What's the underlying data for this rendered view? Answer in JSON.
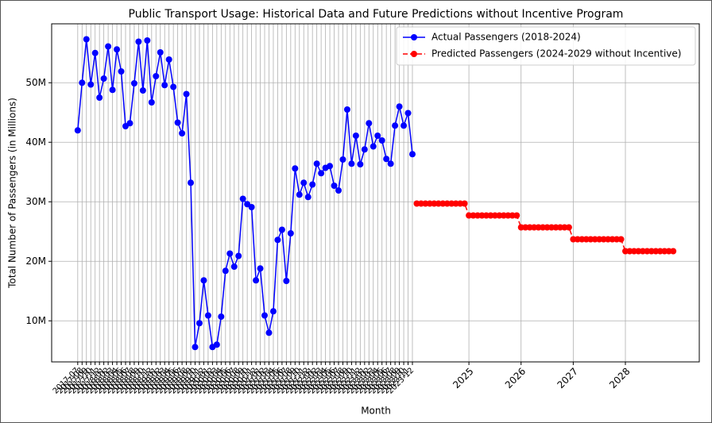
{
  "chart_data": {
    "type": "line",
    "title": "Public Transport Usage: Historical Data and Future Predictions without Incentive Program",
    "xlabel": "Month",
    "ylabel": "Total Number of Passengers (in Millions)",
    "xlim": [
      "2017-01",
      "2029-06"
    ],
    "ylim": [
      3.1,
      59.9
    ],
    "yticks": [
      {
        "value": 10,
        "label": "10M"
      },
      {
        "value": 20,
        "label": "20M"
      },
      {
        "value": 30,
        "label": "30M"
      },
      {
        "value": 40,
        "label": "40M"
      },
      {
        "value": 50,
        "label": "50M"
      }
    ],
    "xticks": [
      {
        "value": "2025-01",
        "label": "2025"
      },
      {
        "value": "2026-01",
        "label": "2026"
      },
      {
        "value": "2027-01",
        "label": "2027"
      },
      {
        "value": "2028-01",
        "label": "2028"
      }
    ],
    "grid": true,
    "legend": "upper right",
    "series": [
      {
        "name": "Actual Passengers (2018-2024)",
        "color": "blue",
        "linestyle": "solid",
        "x": [
          "2017-07",
          "2017-08",
          "2017-09",
          "2017-10",
          "2017-11",
          "2017-12",
          "2018-01",
          "2018-02",
          "2018-03",
          "2018-04",
          "2018-05",
          "2018-06",
          "2018-07",
          "2018-08",
          "2018-09",
          "2018-10",
          "2018-11",
          "2018-12",
          "2019-01",
          "2019-02",
          "2019-03",
          "2019-04",
          "2019-05",
          "2019-06",
          "2019-07",
          "2019-08",
          "2019-09",
          "2019-10",
          "2019-11",
          "2019-12",
          "2020-01",
          "2020-02",
          "2020-03",
          "2020-04",
          "2020-05",
          "2020-06",
          "2020-07",
          "2020-08",
          "2020-09",
          "2020-10",
          "2020-11",
          "2020-12",
          "2021-01",
          "2021-02",
          "2021-03",
          "2021-04",
          "2021-05",
          "2021-06",
          "2021-07",
          "2021-08",
          "2021-09",
          "2021-10",
          "2021-11",
          "2021-12",
          "2022-01",
          "2022-02",
          "2022-03",
          "2022-04",
          "2022-05",
          "2022-06",
          "2022-07",
          "2022-08",
          "2022-09",
          "2022-10",
          "2022-11",
          "2022-12",
          "2023-01",
          "2023-02",
          "2023-03",
          "2023-04",
          "2023-05",
          "2023-06",
          "2023-07",
          "2023-08",
          "2023-09",
          "2023-10",
          "2023-11",
          "2023-12"
        ],
        "values": [
          42.0,
          50.0,
          57.3,
          49.7,
          55.0,
          47.5,
          50.7,
          56.1,
          48.8,
          55.6,
          51.9,
          42.7,
          43.2,
          49.9,
          56.9,
          48.7,
          57.1,
          46.7,
          51.1,
          55.1,
          49.6,
          53.9,
          49.3,
          43.3,
          41.5,
          48.1,
          33.2,
          5.6,
          9.6,
          16.8,
          10.9,
          5.6,
          6.0,
          10.7,
          18.4,
          21.3,
          19.1,
          20.9,
          30.5,
          29.6,
          29.1,
          16.8,
          18.8,
          10.9,
          8.0,
          11.6,
          23.6,
          25.3,
          16.7,
          24.7,
          35.6,
          31.2,
          33.2,
          30.8,
          32.9,
          36.4,
          34.8,
          35.7,
          36.0,
          32.7,
          31.9,
          37.1,
          45.5,
          36.4,
          41.1,
          36.3,
          38.8,
          43.2,
          39.3,
          41.1,
          40.3,
          37.2,
          36.4,
          42.8,
          46.0,
          42.8,
          44.9,
          38.0
        ]
      },
      {
        "name": "Predicted Passengers (2024-2029 without Incentive)",
        "color": "red",
        "linestyle": "dashed",
        "x": [
          "2024-01",
          "2024-02",
          "2024-03",
          "2024-04",
          "2024-05",
          "2024-06",
          "2024-07",
          "2024-08",
          "2024-09",
          "2024-10",
          "2024-11",
          "2024-12",
          "2025-01",
          "2025-02",
          "2025-03",
          "2025-04",
          "2025-05",
          "2025-06",
          "2025-07",
          "2025-08",
          "2025-09",
          "2025-10",
          "2025-11",
          "2025-12",
          "2026-01",
          "2026-02",
          "2026-03",
          "2026-04",
          "2026-05",
          "2026-06",
          "2026-07",
          "2026-08",
          "2026-09",
          "2026-10",
          "2026-11",
          "2026-12",
          "2027-01",
          "2027-02",
          "2027-03",
          "2027-04",
          "2027-05",
          "2027-06",
          "2027-07",
          "2027-08",
          "2027-09",
          "2027-10",
          "2027-11",
          "2027-12",
          "2028-01",
          "2028-02",
          "2028-03",
          "2028-04",
          "2028-05",
          "2028-06",
          "2028-07",
          "2028-08",
          "2028-09",
          "2028-10",
          "2028-11",
          "2028-12"
        ],
        "values": [
          29.7,
          29.7,
          29.7,
          29.7,
          29.7,
          29.7,
          29.7,
          29.7,
          29.7,
          29.7,
          29.7,
          29.7,
          27.7,
          27.7,
          27.7,
          27.7,
          27.7,
          27.7,
          27.7,
          27.7,
          27.7,
          27.7,
          27.7,
          27.7,
          25.7,
          25.7,
          25.7,
          25.7,
          25.7,
          25.7,
          25.7,
          25.7,
          25.7,
          25.7,
          25.7,
          25.7,
          23.7,
          23.7,
          23.7,
          23.7,
          23.7,
          23.7,
          23.7,
          23.7,
          23.7,
          23.7,
          23.7,
          23.7,
          21.7,
          21.7,
          21.7,
          21.7,
          21.7,
          21.7,
          21.7,
          21.7,
          21.7,
          21.7,
          21.7,
          21.7
        ]
      }
    ]
  }
}
